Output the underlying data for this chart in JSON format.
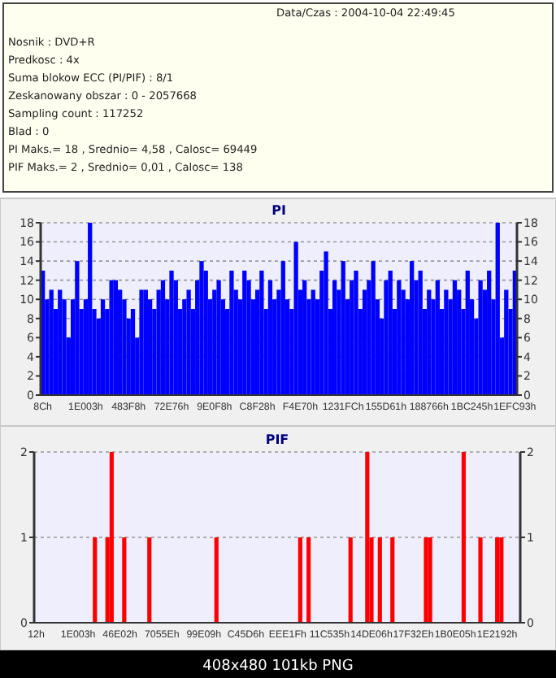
{
  "chart_data": [
    {
      "type": "bar",
      "title": "PI",
      "annotations": [
        "Data/Czas : 2004-10-04 22:49:45",
        "Nosnik : DVD+R",
        "Predkosc : 4x",
        "Suma blokow ECC (PI/PIF) : 8/1",
        "Zeskanowany obszar : 0 - 2057668",
        "Sampling count : 117252",
        "Blad : 0",
        "PI Maks.= 18 , Srednio= 4,58 , Calosc= 69449",
        "PIF Maks.= 2 , Srednio= 0,01 , Calosc= 138"
      ],
      "categories": [
        "8Ch",
        null,
        null,
        null,
        null,
        null,
        null,
        null,
        null,
        null,
        "1E003h",
        null,
        null,
        null,
        null,
        null,
        null,
        null,
        null,
        null,
        "483F8h",
        null,
        null,
        null,
        null,
        null,
        null,
        null,
        null,
        null,
        "72E76h",
        null,
        null,
        null,
        null,
        null,
        null,
        null,
        null,
        null,
        "9E0F8h",
        null,
        null,
        null,
        null,
        null,
        null,
        null,
        null,
        null,
        "C8F28h",
        null,
        null,
        null,
        null,
        null,
        null,
        null,
        null,
        null,
        "F4E70h",
        null,
        null,
        null,
        null,
        null,
        null,
        null,
        null,
        null,
        "1231FCh",
        null,
        null,
        null,
        null,
        null,
        null,
        null,
        null,
        null,
        "155D61h",
        null,
        null,
        null,
        null,
        null,
        null,
        null,
        null,
        null,
        "188766h",
        null,
        null,
        null,
        null,
        null,
        null,
        null,
        null,
        null,
        "1BC245h",
        null,
        null,
        null,
        null,
        null,
        null,
        null,
        null,
        null,
        "1EFC93h"
      ],
      "values": [
        13,
        10,
        11,
        9,
        11,
        10,
        6,
        10,
        14,
        9,
        10,
        18,
        9,
        8,
        10,
        9,
        12,
        12,
        11,
        10,
        8,
        9,
        6,
        11,
        11,
        10,
        9,
        11,
        12,
        10,
        13,
        12,
        9,
        10,
        11,
        9,
        12,
        14,
        13,
        10,
        11,
        12,
        10,
        9,
        13,
        11,
        10,
        13,
        12,
        10,
        11,
        13,
        9,
        12,
        10,
        11,
        14,
        10,
        9,
        16,
        11,
        12,
        10,
        11,
        10,
        13,
        15,
        9,
        12,
        11,
        14,
        10,
        12,
        13,
        9,
        11,
        12,
        14,
        10,
        8,
        12,
        13,
        9,
        12,
        11,
        10,
        14,
        12,
        13,
        9,
        11,
        10,
        12,
        9,
        11,
        10,
        12,
        11,
        9,
        13,
        10,
        8,
        12,
        11,
        13,
        10,
        18,
        6,
        11,
        9,
        13
      ],
      "color": "#0000ff",
      "ylim": [
        0,
        18
      ],
      "yticks": [
        0,
        2,
        4,
        6,
        8,
        10,
        12,
        14,
        16,
        18
      ],
      "y2lim": [
        0,
        18
      ],
      "y2ticks": [
        0,
        2,
        4,
        6,
        8,
        10,
        12,
        14,
        16,
        18
      ],
      "grid": "y"
    },
    {
      "type": "bar",
      "title": "PIF",
      "annotations": [
        "408x480 101kb PNG"
      ],
      "categories": [
        "12h",
        null,
        null,
        null,
        null,
        null,
        null,
        null,
        null,
        null,
        "1E003h",
        null,
        null,
        null,
        null,
        null,
        null,
        null,
        null,
        null,
        "46E02h",
        null,
        null,
        null,
        null,
        null,
        null,
        null,
        null,
        null,
        "7055Eh",
        null,
        null,
        null,
        null,
        null,
        null,
        null,
        null,
        null,
        "99E09h",
        null,
        null,
        null,
        null,
        null,
        null,
        null,
        null,
        null,
        "C45D6h",
        null,
        null,
        null,
        null,
        null,
        null,
        null,
        null,
        null,
        "EEE1Fh",
        null,
        null,
        null,
        null,
        null,
        null,
        null,
        null,
        null,
        "11C535h",
        null,
        null,
        null,
        null,
        null,
        null,
        null,
        null,
        null,
        "14DE06h",
        null,
        null,
        null,
        null,
        null,
        null,
        null,
        null,
        null,
        "17F32Eh",
        null,
        null,
        null,
        null,
        null,
        null,
        null,
        null,
        null,
        "1B0E05h",
        null,
        null,
        null,
        null,
        null,
        null,
        null,
        null,
        null,
        "1E2192h",
        null,
        null,
        null,
        null,
        null
      ],
      "values": [
        0,
        0,
        0,
        0,
        0,
        0,
        0,
        0,
        0,
        0,
        0,
        0,
        0,
        0,
        1,
        0,
        0,
        1,
        2,
        0,
        0,
        1,
        0,
        0,
        0,
        0,
        0,
        1,
        0,
        0,
        0,
        0,
        0,
        0,
        0,
        0,
        0,
        0,
        0,
        0,
        0,
        0,
        0,
        1,
        0,
        0,
        0,
        0,
        0,
        0,
        0,
        0,
        0,
        0,
        0,
        0,
        0,
        0,
        0,
        0,
        0,
        0,
        0,
        1,
        0,
        1,
        0,
        0,
        0,
        0,
        0,
        0,
        0,
        0,
        0,
        1,
        0,
        0,
        0,
        2,
        1,
        0,
        1,
        0,
        0,
        1,
        0,
        0,
        0,
        0,
        0,
        0,
        0,
        1,
        1,
        0,
        0,
        0,
        0,
        0,
        0,
        0,
        2,
        0,
        0,
        0,
        1,
        0,
        0,
        0,
        1,
        1,
        0,
        0,
        0,
        0
      ],
      "color": "#ff0000",
      "ylim": [
        0,
        2
      ],
      "yticks": [
        0,
        1,
        2
      ],
      "y2lim": [
        0,
        2
      ],
      "y2ticks": [
        0,
        1,
        2
      ],
      "grid": "y"
    }
  ]
}
